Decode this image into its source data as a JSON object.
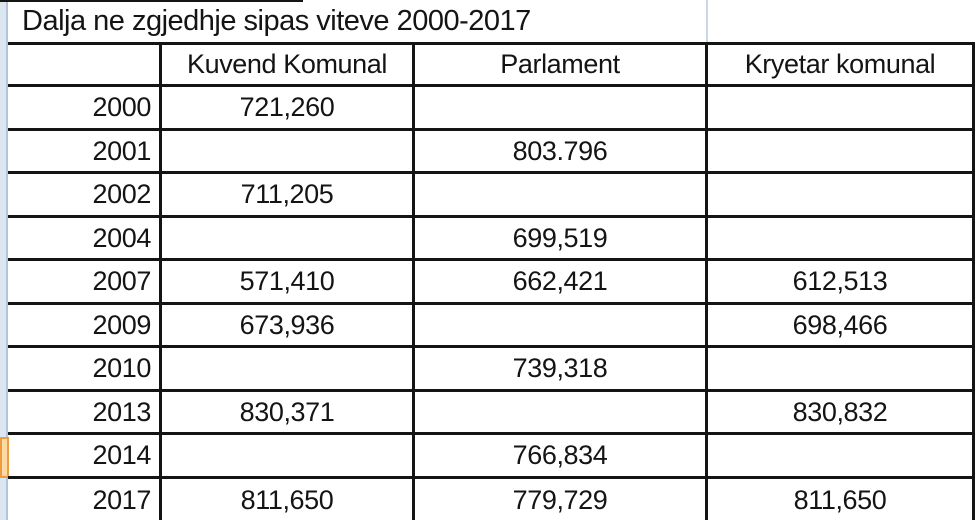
{
  "title_cell": "Dalja ne zgjedhje sipas viteve 2000-2017",
  "table": {
    "columns": [
      "",
      "Kuvend Komunal",
      "Parlament",
      "Kryetar komunal"
    ],
    "rows": [
      {
        "year": "2000",
        "kuvend": "721,260",
        "parlament": "",
        "kryetar": ""
      },
      {
        "year": "2001",
        "kuvend": "",
        "parlament": "803.796",
        "kryetar": ""
      },
      {
        "year": "2002",
        "kuvend": "711,205",
        "parlament": "",
        "kryetar": ""
      },
      {
        "year": "2004",
        "kuvend": "",
        "parlament": "699,519",
        "kryetar": ""
      },
      {
        "year": "2007",
        "kuvend": "571,410",
        "parlament": "662,421",
        "kryetar": "612,513"
      },
      {
        "year": "2009",
        "kuvend": "673,936",
        "parlament": "",
        "kryetar": "698,466"
      },
      {
        "year": "2010",
        "kuvend": "",
        "parlament": "739,318",
        "kryetar": ""
      },
      {
        "year": "2013",
        "kuvend": "830,371",
        "parlament": "",
        "kryetar": "830,832"
      },
      {
        "year": "2014",
        "kuvend": "",
        "parlament": "766,834",
        "kryetar": ""
      },
      {
        "year": "2017",
        "kuvend": "811,650",
        "parlament": "779,729",
        "kryetar": "811,650"
      }
    ]
  },
  "selection": {
    "selected_row_year": "2014"
  },
  "colors": {
    "border": "#141414",
    "text": "#141414",
    "background": "#ffffff",
    "row_strip_fill": "#dce6f1",
    "row_strip_edge": "#b2c3da",
    "selected_strip_fill": "#fdd9a3",
    "selected_strip_border": "#ed9c3f",
    "gridline": "#c9d7e7"
  },
  "chart_data": {
    "type": "table",
    "title": "Dalja ne zgjedhje sipas viteve 2000-2017",
    "columns": [
      "",
      "Kuvend Komunal",
      "Parlament",
      "Kryetar komunal"
    ],
    "rows": [
      [
        "2000",
        "721,260",
        "",
        ""
      ],
      [
        "2001",
        "",
        "803.796",
        ""
      ],
      [
        "2002",
        "711,205",
        "",
        ""
      ],
      [
        "2004",
        "",
        "699,519",
        ""
      ],
      [
        "2007",
        "571,410",
        "662,421",
        "612,513"
      ],
      [
        "2009",
        "673,936",
        "",
        "698,466"
      ],
      [
        "2010",
        "",
        "739,318",
        ""
      ],
      [
        "2013",
        "830,371",
        "",
        "830,832"
      ],
      [
        "2014",
        "",
        "766,834",
        ""
      ],
      [
        "2017",
        "811,650",
        "779,729",
        "811,650"
      ]
    ],
    "layout_hints": {
      "grid": "thick black cell borders",
      "first_column_align": "right",
      "value_align": "center"
    }
  }
}
